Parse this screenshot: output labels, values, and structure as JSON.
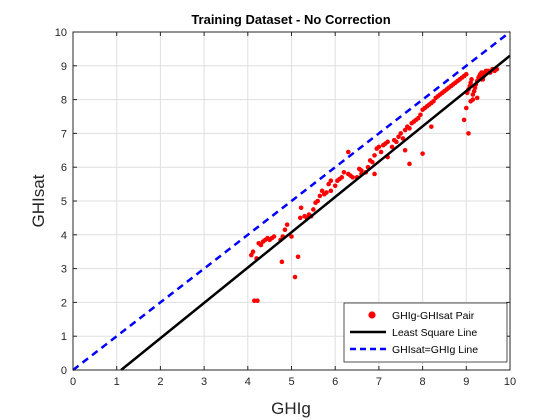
{
  "chart_data": {
    "type": "scatter",
    "title": "Training Dataset - No Correction",
    "xlabel": "GHIg",
    "ylabel": "GHIsat",
    "xlim": [
      0,
      10
    ],
    "ylim": [
      0,
      10
    ],
    "xticks": [
      "0",
      "1",
      "2",
      "3",
      "4",
      "5",
      "6",
      "7",
      "8",
      "9",
      "10"
    ],
    "yticks": [
      "0",
      "1",
      "2",
      "3",
      "4",
      "5",
      "6",
      "7",
      "8",
      "9",
      "10"
    ],
    "grid": true,
    "legend_position": "bottom-right",
    "colors": {
      "points": "#ff0000",
      "fit_line": "#000000",
      "identity_line": "#0000ff"
    },
    "series": [
      {
        "name": "GHIg-GHIsat Pair",
        "kind": "points",
        "x": [
          4.15,
          4.22,
          4.08,
          4.12,
          4.2,
          4.3,
          4.25,
          4.35,
          4.4,
          4.45,
          4.5,
          4.55,
          4.6,
          4.75,
          4.8,
          4.85,
          4.78,
          4.9,
          5.0,
          5.08,
          5.15,
          5.2,
          5.22,
          5.3,
          5.35,
          5.4,
          5.45,
          5.5,
          5.55,
          5.6,
          5.65,
          5.7,
          5.75,
          5.8,
          5.85,
          5.9,
          6.0,
          6.05,
          6.1,
          6.15,
          6.2,
          6.3,
          6.35,
          6.4,
          6.5,
          6.55,
          6.6,
          6.7,
          6.75,
          6.8,
          6.85,
          6.9,
          6.95,
          7.0,
          7.05,
          7.1,
          7.15,
          7.2,
          7.3,
          7.35,
          7.4,
          7.45,
          7.5,
          7.55,
          7.6,
          7.65,
          7.7,
          7.75,
          7.8,
          7.85,
          7.9,
          7.95,
          8.0,
          8.05,
          8.1,
          8.15,
          8.2,
          8.25,
          8.3,
          8.35,
          8.4,
          8.45,
          8.5,
          8.55,
          8.6,
          8.65,
          8.7,
          8.75,
          8.8,
          8.85,
          8.9,
          8.95,
          9.0,
          9.02,
          9.05,
          9.08,
          9.1,
          9.12,
          9.15,
          9.18,
          9.2,
          9.22,
          9.25,
          9.28,
          9.3,
          9.32,
          9.35,
          9.38,
          9.4,
          9.42,
          9.45,
          9.5,
          9.55,
          9.6,
          9.65,
          9.7,
          9.05,
          9.1,
          9.0,
          8.95,
          7.6,
          7.7,
          8.2,
          7.2,
          6.9,
          8.0,
          6.6,
          6.3,
          5.9,
          9.15,
          9.25,
          9.35
        ],
        "y": [
          2.05,
          2.05,
          3.4,
          3.5,
          3.3,
          3.7,
          3.75,
          3.8,
          3.85,
          3.9,
          3.85,
          3.9,
          3.95,
          3.85,
          3.95,
          4.15,
          3.2,
          4.3,
          3.95,
          2.75,
          3.35,
          4.5,
          4.8,
          4.55,
          4.5,
          4.6,
          4.55,
          4.75,
          4.95,
          5.0,
          5.15,
          5.3,
          5.2,
          5.25,
          5.5,
          5.3,
          5.45,
          5.6,
          5.65,
          5.7,
          5.85,
          5.8,
          5.75,
          5.7,
          5.7,
          5.95,
          5.8,
          5.85,
          6.0,
          6.2,
          6.15,
          6.35,
          6.55,
          6.6,
          6.45,
          6.65,
          6.7,
          6.75,
          6.6,
          6.8,
          6.75,
          6.9,
          7.0,
          6.85,
          7.1,
          7.2,
          7.15,
          7.3,
          7.35,
          7.4,
          7.45,
          7.55,
          7.7,
          7.75,
          7.8,
          7.85,
          7.9,
          7.95,
          8.05,
          8.1,
          8.15,
          8.2,
          8.25,
          8.3,
          8.35,
          8.4,
          8.45,
          8.5,
          8.55,
          8.6,
          8.65,
          8.7,
          8.75,
          8.2,
          8.3,
          8.4,
          8.5,
          8.6,
          8.0,
          8.25,
          8.35,
          8.45,
          8.55,
          8.65,
          8.7,
          8.75,
          8.8,
          8.6,
          8.7,
          8.8,
          8.85,
          8.85,
          8.8,
          8.9,
          8.85,
          8.9,
          7.0,
          7.95,
          7.75,
          7.4,
          6.5,
          6.1,
          7.2,
          6.3,
          5.8,
          6.4,
          5.9,
          6.45,
          5.6,
          8.15,
          8.05,
          8.6
        ]
      },
      {
        "name": "Least Square Line",
        "kind": "line",
        "x": [
          1.1,
          10
        ],
        "y": [
          0,
          9.3
        ]
      },
      {
        "name": "GHIsat=GHIg Line",
        "kind": "dashed-line",
        "x": [
          0,
          10
        ],
        "y": [
          0,
          10
        ]
      }
    ]
  }
}
